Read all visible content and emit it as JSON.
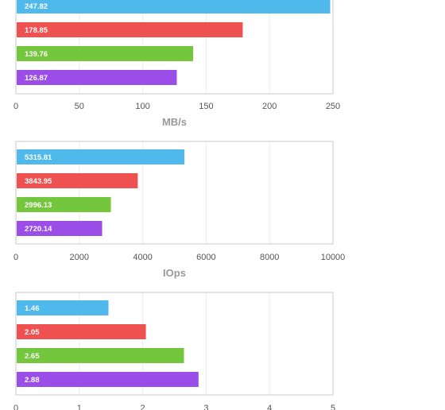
{
  "colors": [
    "#4fb9ec",
    "#ef5050",
    "#74c63c",
    "#9b4de8"
  ],
  "chart_data": [
    {
      "type": "bar",
      "orientation": "horizontal",
      "categories": [
        "",
        "",
        "",
        ""
      ],
      "values": [
        247.82,
        178.85,
        139.76,
        126.87
      ],
      "value_labels": [
        "247.82",
        "178.85",
        "139.76",
        "126.87"
      ],
      "xlim": [
        0,
        250
      ],
      "xticks": [
        "0",
        "50",
        "100",
        "150",
        "200",
        "250"
      ],
      "xlabel": "MB/s",
      "grid": true
    },
    {
      "type": "bar",
      "orientation": "horizontal",
      "categories": [
        "",
        "",
        "",
        ""
      ],
      "values": [
        5315.81,
        3843.95,
        2996.13,
        2720.14
      ],
      "value_labels": [
        "5315.81",
        "3843.95",
        "2996.13",
        "2720.14"
      ],
      "xlim": [
        0,
        10000
      ],
      "xticks": [
        "0",
        "2000",
        "4000",
        "6000",
        "8000",
        "10000"
      ],
      "xlabel": "IOps",
      "grid": true
    },
    {
      "type": "bar",
      "orientation": "horizontal",
      "categories": [
        "",
        "",
        "",
        ""
      ],
      "values": [
        1.46,
        2.05,
        2.65,
        2.88
      ],
      "value_labels": [
        "1.46",
        "2.05",
        "2.65",
        "2.88"
      ],
      "xlim": [
        0,
        5
      ],
      "xticks": [
        "0",
        "1",
        "2",
        "3",
        "4",
        "5"
      ],
      "xlabel": "",
      "grid": true
    }
  ]
}
